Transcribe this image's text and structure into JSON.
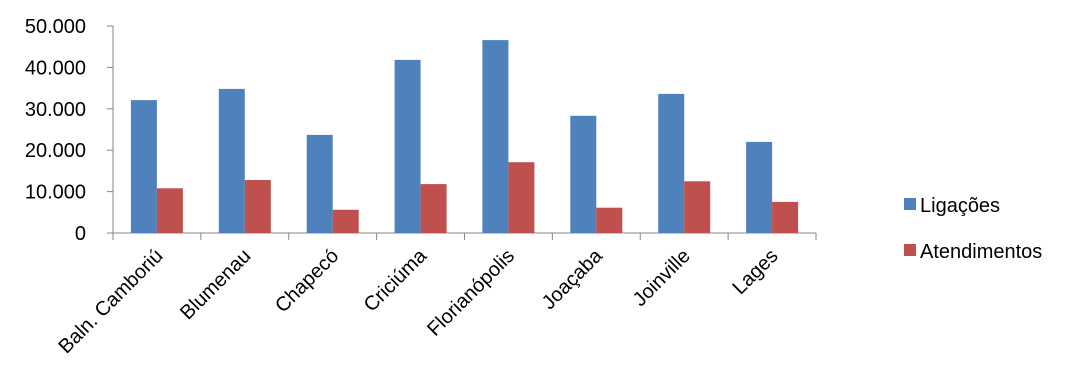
{
  "chart_data": {
    "type": "bar",
    "categories": [
      "Baln. Camboriú",
      "Blumenau",
      "Chapecó",
      "Criciúma",
      "Florianópolis",
      "Joaçaba",
      "Joinville",
      "Lages"
    ],
    "series": [
      {
        "name": "Ligações",
        "color": "#4F81BD",
        "values": [
          32100,
          34800,
          23700,
          41800,
          46600,
          28300,
          33600,
          22000
        ]
      },
      {
        "name": "Atendimentos",
        "color": "#C0504D",
        "values": [
          10800,
          12800,
          5600,
          11800,
          17100,
          6100,
          12500,
          7500
        ]
      }
    ],
    "yticks": [
      "0",
      "10.000",
      "20.000",
      "30.000",
      "40.000",
      "50.000"
    ],
    "ylim": [
      0,
      50000
    ],
    "grid": false,
    "legend_position": "right"
  }
}
